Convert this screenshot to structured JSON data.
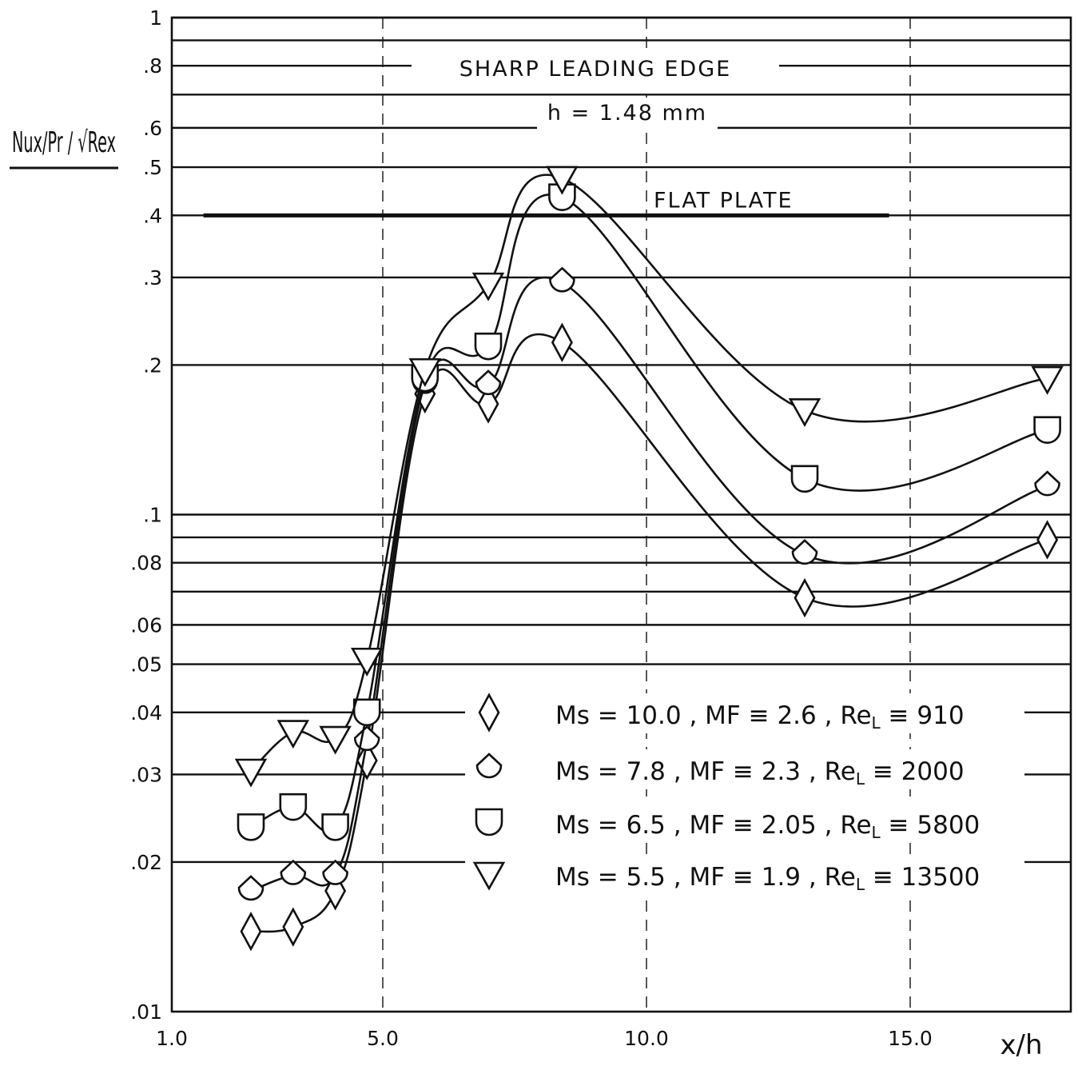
{
  "chart_data": {
    "type": "line",
    "x_scale": "linear",
    "y_scale": "log",
    "xlim": [
      1.0,
      18.0
    ],
    "ylim": [
      0.01,
      1.0
    ],
    "xlabel": "x/h",
    "ylabel": "Nux/Pr / √Rex",
    "x_ticks": [
      "1.0",
      "5.0",
      "10.0",
      "15.0"
    ],
    "y_ticks": [
      {
        "value": 1.0,
        "label": "1"
      },
      {
        "value": 0.8,
        "label": ".8"
      },
      {
        "value": 0.6,
        "label": ".6"
      },
      {
        "value": 0.5,
        "label": ".5"
      },
      {
        "value": 0.4,
        "label": ".4"
      },
      {
        "value": 0.3,
        "label": ".3"
      },
      {
        "value": 0.2,
        "label": ".2"
      },
      {
        "value": 0.1,
        "label": ".1"
      },
      {
        "value": 0.08,
        "label": ".08"
      },
      {
        "value": 0.06,
        "label": ".06"
      },
      {
        "value": 0.05,
        "label": ".05"
      },
      {
        "value": 0.04,
        "label": ".04"
      },
      {
        "value": 0.03,
        "label": ".03"
      },
      {
        "value": 0.02,
        "label": ".02"
      },
      {
        "value": 0.01,
        "label": ".01"
      }
    ],
    "grid_values": [
      1.0,
      0.9,
      0.8,
      0.7,
      0.6,
      0.5,
      0.4,
      0.3,
      0.2,
      0.1,
      0.09,
      0.08,
      0.07,
      0.06,
      0.05,
      0.04,
      0.03,
      0.02
    ],
    "grid": true,
    "annotations": {
      "title": "SHARP LEADING EDGE",
      "subtitle": "h = 1.48 mm",
      "reference_label": "FLAT PLATE",
      "reference_value": 0.4,
      "reference_xrange": [
        1.6,
        14.6
      ]
    },
    "legend_position": "bottom-right",
    "series": [
      {
        "marker": "diamond",
        "name_parts": {
          "ms": "Ms",
          "ms_val": "= 10.0",
          "mf": ", MF",
          "mf_val": "≡ 2.6",
          "re": ", Re",
          "re_sub": "L",
          "re_val": "≡ 910"
        },
        "points": [
          [
            2.5,
            0.0145
          ],
          [
            3.3,
            0.0148
          ],
          [
            4.1,
            0.0175
          ],
          [
            4.7,
            0.032
          ],
          [
            5.8,
            0.175
          ],
          [
            7.0,
            0.167
          ],
          [
            8.4,
            0.222
          ],
          [
            13.0,
            0.068
          ],
          [
            17.6,
            0.089
          ]
        ]
      },
      {
        "marker": "circle-diamond",
        "name_parts": {
          "ms": "Ms",
          "ms_val": "= 7.8",
          "mf": ", MF",
          "mf_val": "≡ 2.3",
          "re": ", Re",
          "re_sub": "L",
          "re_val": "≡ 2000"
        },
        "points": [
          [
            2.5,
            0.0175
          ],
          [
            3.3,
            0.0188
          ],
          [
            4.1,
            0.0188
          ],
          [
            4.7,
            0.035
          ],
          [
            5.8,
            0.183
          ],
          [
            7.0,
            0.182
          ],
          [
            8.4,
            0.293
          ],
          [
            13.0,
            0.083
          ],
          [
            17.6,
            0.114
          ]
        ]
      },
      {
        "marker": "u-cup",
        "name_parts": {
          "ms": "Ms",
          "ms_val": "= 6.5",
          "mf": ", MF",
          "mf_val": "≡ 2.05",
          "re": ", Re",
          "re_sub": "L",
          "re_val": "≡ 5800"
        },
        "points": [
          [
            2.5,
            0.0235
          ],
          [
            3.3,
            0.0258
          ],
          [
            4.1,
            0.0235
          ],
          [
            4.7,
            0.04
          ],
          [
            5.8,
            0.188
          ],
          [
            7.0,
            0.218
          ],
          [
            8.4,
            0.435
          ],
          [
            13.0,
            0.118
          ],
          [
            17.6,
            0.148
          ]
        ]
      },
      {
        "marker": "triangle-down",
        "name_parts": {
          "ms": "Ms",
          "ms_val": "= 5.5",
          "mf": ", MF",
          "mf_val": "≡ 1.9",
          "re": ", Re",
          "re_sub": "L",
          "re_val": "≡ 13500"
        },
        "points": [
          [
            2.5,
            0.0305
          ],
          [
            3.3,
            0.0365
          ],
          [
            4.1,
            0.0355
          ],
          [
            4.7,
            0.051
          ],
          [
            5.8,
            0.195
          ],
          [
            7.0,
            0.29
          ],
          [
            8.4,
            0.475
          ],
          [
            13.0,
            0.162
          ],
          [
            17.6,
            0.188
          ]
        ]
      }
    ]
  }
}
